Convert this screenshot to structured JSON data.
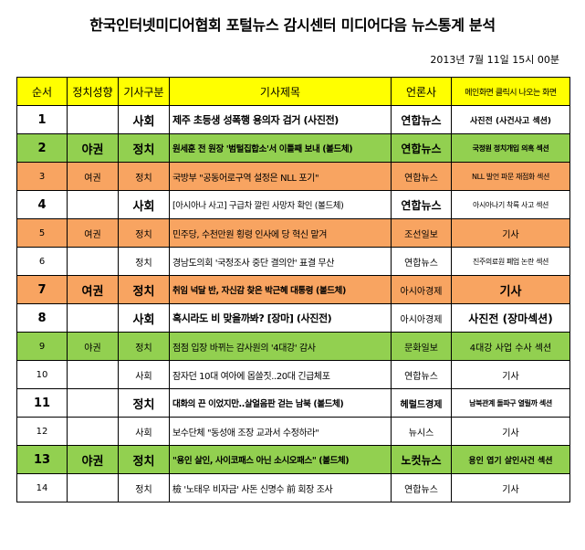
{
  "title": "한국인터넷미디어협회 포털뉴스 감시센터 미디어다음 뉴스통계 분석",
  "date": "2013년 7월 11일 15시 00분",
  "headers": [
    "순서",
    "정치성향",
    "기사구분",
    "기사제목",
    "언론사",
    "메인화면 클릭시 나오는 화면"
  ],
  "rows": [
    {
      "no": "1",
      "lean": "",
      "cat": "사회",
      "headline": "제주 초등생 성폭행 용의자 검거 (사진전)",
      "outlet": "연합뉴스",
      "screen": "사진전 (사건사고 섹션)"
    },
    {
      "no": "2",
      "lean": "야권",
      "cat": "정치",
      "headline": "원세훈 전 원장 '범털집합소'서 이틀째 보내 (볼드체)",
      "outlet": "연합뉴스",
      "screen": "국정원 정치개입 의혹 섹션"
    },
    {
      "no": "3",
      "lean": "여권",
      "cat": "정치",
      "headline": "국방부 \"공동어로구역 설정은 NLL 포기\"",
      "outlet": "연합뉴스",
      "screen": "NLL 발언 파문 재점화 섹션"
    },
    {
      "no": "4",
      "lean": "",
      "cat": "사회",
      "headline": "[아시아나 사고] 구급차 깔린 사망자 확인 (볼드체)",
      "outlet": "연합뉴스",
      "screen": "아시아나기 착륙 사고 섹션"
    },
    {
      "no": "5",
      "lean": "여권",
      "cat": "정치",
      "headline": "민주당, 수천만원 횡령 인사에 당 혁신 맡겨",
      "outlet": "조선일보",
      "screen": "기사"
    },
    {
      "no": "6",
      "lean": "",
      "cat": "정치",
      "headline": "경남도의회 '국정조사 중단 결의안' 표결 무산",
      "outlet": "연합뉴스",
      "screen": "진주의료원 폐업 논란 섹션"
    },
    {
      "no": "7",
      "lean": "여권",
      "cat": "정치",
      "headline": "취임 넉달 반, 자신감 찾은 박근혜 대통령 (볼드체)",
      "outlet": "아시아경제",
      "screen": "기사"
    },
    {
      "no": "8",
      "lean": "",
      "cat": "사회",
      "headline": "혹시라도 비 맞을까봐? [장마] (사진전)",
      "outlet": "아시아경제",
      "screen": "사진전 (장마섹션)"
    },
    {
      "no": "9",
      "lean": "야권",
      "cat": "정치",
      "headline": "점점 입장 바뀌는 감사원의 '4대강' 감사",
      "outlet": "문화일보",
      "screen": "4대강 사업 수사 섹션"
    },
    {
      "no": "10",
      "lean": "",
      "cat": "사회",
      "headline": "잠자던 10대 여아에 몹쓸짓..20대 긴급체포",
      "outlet": "연합뉴스",
      "screen": "기사"
    },
    {
      "no": "11",
      "lean": "",
      "cat": "정치",
      "headline": "대화의 끈 이었지만..살얼음판 걷는 남북 (볼드체)",
      "outlet": "헤럴드경제",
      "screen": "남북관계 돌파구 열릴까 섹션"
    },
    {
      "no": "12",
      "lean": "",
      "cat": "사회",
      "headline": "보수단체 \"동성애 조장 교과서 수정하라\"",
      "outlet": "뉴시스",
      "screen": "기사"
    },
    {
      "no": "13",
      "lean": "야권",
      "cat": "정치",
      "headline": "\"용인 살인, 사이코패스 아닌 소시오패스\" (볼드체)",
      "outlet": "노컷뉴스",
      "screen": "용인 엽기 살인사건 섹션"
    },
    {
      "no": "14",
      "lean": "",
      "cat": "정치",
      "headline": "檢 '노태우 비자금' 사돈 신명수 前 회장 조사",
      "outlet": "연합뉴스",
      "screen": "기사"
    }
  ],
  "colors": {
    "header": "#ffff00",
    "green": "#92d050",
    "orange": "#f8a461",
    "white": "#ffffff"
  }
}
